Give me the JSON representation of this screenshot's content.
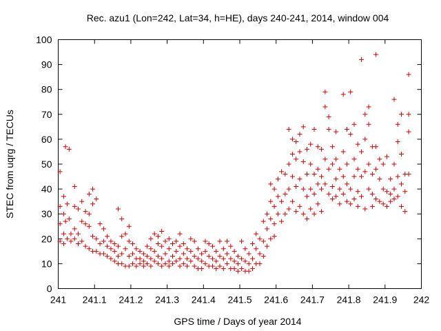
{
  "chart_data": {
    "type": "scatter",
    "title": "Rec. azu1 (Lon=242, Lat=34, h=HE), days 240-241, 2014, window 004",
    "xlabel": "GPS time / Days of year 2014",
    "ylabel": "STEC from uqrg / TECUs",
    "xlim": [
      241,
      242
    ],
    "ylim": [
      0,
      100
    ],
    "x_ticks": [
      "241",
      "241.1",
      "241.2",
      "241.3",
      "241.4",
      "241.5",
      "241.6",
      "241.7",
      "241.8",
      "241.9",
      "242"
    ],
    "y_ticks": [
      "0",
      "10",
      "20",
      "30",
      "40",
      "50",
      "60",
      "70",
      "80",
      "90",
      "100"
    ],
    "grid": false,
    "marker": "plus",
    "color": "#cc0000",
    "points": [
      [
        241.005,
        47
      ],
      [
        241.005,
        33
      ],
      [
        241.005,
        26
      ],
      [
        241.005,
        19
      ],
      [
        241.015,
        37
      ],
      [
        241.015,
        30
      ],
      [
        241.015,
        22
      ],
      [
        241.015,
        18
      ],
      [
        241.02,
        57
      ],
      [
        241.02,
        27
      ],
      [
        241.025,
        34
      ],
      [
        241.025,
        20
      ],
      [
        241.03,
        56
      ],
      [
        241.03,
        28
      ],
      [
        241.035,
        22
      ],
      [
        241.035,
        19
      ],
      [
        241.045,
        41
      ],
      [
        241.045,
        33
      ],
      [
        241.045,
        24
      ],
      [
        241.045,
        20
      ],
      [
        241.055,
        32
      ],
      [
        241.055,
        22
      ],
      [
        241.055,
        18
      ],
      [
        241.065,
        35
      ],
      [
        241.065,
        27
      ],
      [
        241.065,
        19
      ],
      [
        241.075,
        31
      ],
      [
        241.075,
        26
      ],
      [
        241.075,
        17
      ],
      [
        241.085,
        38
      ],
      [
        241.085,
        30
      ],
      [
        241.085,
        25
      ],
      [
        241.085,
        16
      ],
      [
        241.095,
        40
      ],
      [
        241.095,
        34
      ],
      [
        241.095,
        21
      ],
      [
        241.095,
        15
      ],
      [
        241.105,
        36
      ],
      [
        241.105,
        20
      ],
      [
        241.105,
        15
      ],
      [
        241.115,
        26
      ],
      [
        241.115,
        18
      ],
      [
        241.115,
        14
      ],
      [
        241.125,
        24
      ],
      [
        241.125,
        19
      ],
      [
        241.125,
        14
      ],
      [
        241.135,
        21
      ],
      [
        241.135,
        17
      ],
      [
        241.135,
        13
      ],
      [
        241.145,
        19
      ],
      [
        241.145,
        16
      ],
      [
        241.145,
        12
      ],
      [
        241.155,
        18
      ],
      [
        241.155,
        15
      ],
      [
        241.155,
        11
      ],
      [
        241.165,
        32
      ],
      [
        241.165,
        17
      ],
      [
        241.165,
        13
      ],
      [
        241.165,
        10
      ],
      [
        241.175,
        28
      ],
      [
        241.175,
        21
      ],
      [
        241.175,
        14
      ],
      [
        241.175,
        10
      ],
      [
        241.185,
        22
      ],
      [
        241.185,
        16
      ],
      [
        241.185,
        9
      ],
      [
        241.195,
        25
      ],
      [
        241.195,
        19
      ],
      [
        241.195,
        13
      ],
      [
        241.195,
        9
      ],
      [
        241.205,
        18
      ],
      [
        241.205,
        14
      ],
      [
        241.205,
        10
      ],
      [
        241.215,
        16
      ],
      [
        241.215,
        12
      ],
      [
        241.215,
        9
      ],
      [
        241.225,
        15
      ],
      [
        241.225,
        12
      ],
      [
        241.225,
        10
      ],
      [
        241.235,
        14
      ],
      [
        241.235,
        11
      ],
      [
        241.235,
        9
      ],
      [
        241.245,
        17
      ],
      [
        241.245,
        13
      ],
      [
        241.245,
        10
      ],
      [
        241.255,
        20
      ],
      [
        241.255,
        16
      ],
      [
        241.255,
        12
      ],
      [
        241.255,
        9
      ],
      [
        241.265,
        22
      ],
      [
        241.265,
        15
      ],
      [
        241.265,
        11
      ],
      [
        241.275,
        21
      ],
      [
        241.275,
        18
      ],
      [
        241.275,
        13
      ],
      [
        241.275,
        10
      ],
      [
        241.285,
        23
      ],
      [
        241.285,
        17
      ],
      [
        241.285,
        12
      ],
      [
        241.285,
        9
      ],
      [
        241.295,
        19
      ],
      [
        241.295,
        14
      ],
      [
        241.295,
        10
      ],
      [
        241.305,
        20
      ],
      [
        241.305,
        16
      ],
      [
        241.305,
        11
      ],
      [
        241.305,
        9
      ],
      [
        241.315,
        18
      ],
      [
        241.315,
        13
      ],
      [
        241.315,
        10
      ],
      [
        241.325,
        19
      ],
      [
        241.325,
        15
      ],
      [
        241.325,
        11
      ],
      [
        241.335,
        22
      ],
      [
        241.335,
        17
      ],
      [
        241.335,
        12
      ],
      [
        241.335,
        9
      ],
      [
        241.345,
        18
      ],
      [
        241.345,
        14
      ],
      [
        241.345,
        10
      ],
      [
        241.355,
        16
      ],
      [
        241.355,
        12
      ],
      [
        241.355,
        9
      ],
      [
        241.365,
        20
      ],
      [
        241.365,
        15
      ],
      [
        241.365,
        11
      ],
      [
        241.375,
        19
      ],
      [
        241.375,
        13
      ],
      [
        241.375,
        9
      ],
      [
        241.385,
        16
      ],
      [
        241.385,
        12
      ],
      [
        241.385,
        8
      ],
      [
        241.395,
        14
      ],
      [
        241.395,
        11
      ],
      [
        241.395,
        8
      ],
      [
        241.405,
        19
      ],
      [
        241.405,
        15
      ],
      [
        241.405,
        10
      ],
      [
        241.415,
        18
      ],
      [
        241.415,
        13
      ],
      [
        241.415,
        9
      ],
      [
        241.425,
        17
      ],
      [
        241.425,
        12
      ],
      [
        241.425,
        9
      ],
      [
        241.435,
        15
      ],
      [
        241.435,
        11
      ],
      [
        241.435,
        8
      ],
      [
        241.445,
        19
      ],
      [
        241.445,
        13
      ],
      [
        241.445,
        9
      ],
      [
        241.455,
        16
      ],
      [
        241.455,
        12
      ],
      [
        241.455,
        8
      ],
      [
        241.465,
        19
      ],
      [
        241.465,
        14
      ],
      [
        241.465,
        10
      ],
      [
        241.475,
        17
      ],
      [
        241.475,
        12
      ],
      [
        241.475,
        8
      ],
      [
        241.485,
        15
      ],
      [
        241.485,
        11
      ],
      [
        241.485,
        8
      ],
      [
        241.495,
        13
      ],
      [
        241.495,
        10
      ],
      [
        241.495,
        7
      ],
      [
        241.505,
        19
      ],
      [
        241.505,
        12
      ],
      [
        241.505,
        8
      ],
      [
        241.515,
        16
      ],
      [
        241.515,
        11
      ],
      [
        241.515,
        7
      ],
      [
        241.525,
        14
      ],
      [
        241.525,
        10
      ],
      [
        241.525,
        7
      ],
      [
        241.535,
        18
      ],
      [
        241.535,
        12
      ],
      [
        241.535,
        8
      ],
      [
        241.545,
        22
      ],
      [
        241.545,
        16
      ],
      [
        241.545,
        10
      ],
      [
        241.555,
        20
      ],
      [
        241.555,
        14
      ],
      [
        241.555,
        10
      ],
      [
        241.565,
        27
      ],
      [
        241.565,
        19
      ],
      [
        241.565,
        13
      ],
      [
        241.575,
        30
      ],
      [
        241.575,
        24
      ],
      [
        241.575,
        17
      ],
      [
        241.585,
        42
      ],
      [
        241.585,
        35
      ],
      [
        241.585,
        28
      ],
      [
        241.585,
        20
      ],
      [
        241.595,
        40
      ],
      [
        241.595,
        33
      ],
      [
        241.595,
        26
      ],
      [
        241.595,
        21
      ],
      [
        241.605,
        44
      ],
      [
        241.605,
        37
      ],
      [
        241.605,
        30
      ],
      [
        241.615,
        47
      ],
      [
        241.615,
        35
      ],
      [
        241.615,
        27
      ],
      [
        241.625,
        46
      ],
      [
        241.625,
        38
      ],
      [
        241.625,
        30
      ],
      [
        241.635,
        64
      ],
      [
        241.635,
        50
      ],
      [
        241.635,
        40
      ],
      [
        241.635,
        32
      ],
      [
        241.645,
        60
      ],
      [
        241.645,
        54
      ],
      [
        241.645,
        45
      ],
      [
        241.645,
        35
      ],
      [
        241.655,
        59
      ],
      [
        241.655,
        52
      ],
      [
        241.655,
        41
      ],
      [
        241.655,
        31
      ],
      [
        241.665,
        62
      ],
      [
        241.665,
        55
      ],
      [
        241.665,
        44
      ],
      [
        241.665,
        33
      ],
      [
        241.675,
        65
      ],
      [
        241.675,
        51
      ],
      [
        241.675,
        40
      ],
      [
        241.675,
        30
      ],
      [
        241.685,
        56
      ],
      [
        241.685,
        46
      ],
      [
        241.685,
        37
      ],
      [
        241.685,
        28
      ],
      [
        241.695,
        58
      ],
      [
        241.695,
        50
      ],
      [
        241.695,
        40
      ],
      [
        241.695,
        32
      ],
      [
        241.705,
        64
      ],
      [
        241.705,
        46
      ],
      [
        241.705,
        38
      ],
      [
        241.705,
        30
      ],
      [
        241.715,
        57
      ],
      [
        241.715,
        48
      ],
      [
        241.715,
        42
      ],
      [
        241.715,
        34
      ],
      [
        241.725,
        56
      ],
      [
        241.725,
        45
      ],
      [
        241.725,
        40
      ],
      [
        241.725,
        31
      ],
      [
        241.735,
        79
      ],
      [
        241.735,
        73
      ],
      [
        241.735,
        52
      ],
      [
        241.735,
        42
      ],
      [
        241.745,
        69
      ],
      [
        241.745,
        64
      ],
      [
        241.745,
        48
      ],
      [
        241.745,
        38
      ],
      [
        241.755,
        57
      ],
      [
        241.755,
        50
      ],
      [
        241.755,
        41
      ],
      [
        241.755,
        36
      ],
      [
        241.765,
        63
      ],
      [
        241.765,
        52
      ],
      [
        241.765,
        44
      ],
      [
        241.765,
        37
      ],
      [
        241.775,
        48
      ],
      [
        241.775,
        40
      ],
      [
        241.775,
        34
      ],
      [
        241.785,
        78
      ],
      [
        241.785,
        55
      ],
      [
        241.785,
        45
      ],
      [
        241.785,
        38
      ],
      [
        241.795,
        64
      ],
      [
        241.795,
        50
      ],
      [
        241.795,
        42
      ],
      [
        241.795,
        35
      ],
      [
        241.805,
        79
      ],
      [
        241.805,
        62
      ],
      [
        241.805,
        40
      ],
      [
        241.805,
        34
      ],
      [
        241.815,
        66
      ],
      [
        241.815,
        52
      ],
      [
        241.815,
        45
      ],
      [
        241.815,
        36
      ],
      [
        241.825,
        58
      ],
      [
        241.825,
        48
      ],
      [
        241.825,
        39
      ],
      [
        241.825,
        33
      ],
      [
        241.835,
        92
      ],
      [
        241.835,
        55
      ],
      [
        241.835,
        45
      ],
      [
        241.835,
        37
      ],
      [
        241.845,
        70
      ],
      [
        241.845,
        60
      ],
      [
        241.845,
        47
      ],
      [
        241.845,
        32
      ],
      [
        241.855,
        73
      ],
      [
        241.855,
        66
      ],
      [
        241.855,
        50
      ],
      [
        241.855,
        40
      ],
      [
        241.865,
        57
      ],
      [
        241.865,
        46
      ],
      [
        241.865,
        38
      ],
      [
        241.865,
        33
      ],
      [
        241.875,
        94
      ],
      [
        241.875,
        57
      ],
      [
        241.875,
        48
      ],
      [
        241.875,
        36
      ],
      [
        241.885,
        52
      ],
      [
        241.885,
        44
      ],
      [
        241.885,
        35
      ],
      [
        241.895,
        50
      ],
      [
        241.895,
        40
      ],
      [
        241.895,
        34
      ],
      [
        241.905,
        53
      ],
      [
        241.905,
        39
      ],
      [
        241.905,
        33
      ],
      [
        241.915,
        44
      ],
      [
        241.915,
        38
      ],
      [
        241.915,
        35
      ],
      [
        241.925,
        76
      ],
      [
        241.925,
        50
      ],
      [
        241.925,
        40
      ],
      [
        241.925,
        36
      ],
      [
        241.935,
        66
      ],
      [
        241.935,
        59
      ],
      [
        241.935,
        45
      ],
      [
        241.935,
        37
      ],
      [
        241.945,
        70
      ],
      [
        241.945,
        54
      ],
      [
        241.945,
        42
      ],
      [
        241.945,
        33
      ],
      [
        241.955,
        46
      ],
      [
        241.955,
        39
      ],
      [
        241.955,
        31
      ],
      [
        241.965,
        86
      ],
      [
        241.965,
        70
      ],
      [
        241.965,
        63
      ],
      [
        241.965,
        46
      ]
    ]
  }
}
